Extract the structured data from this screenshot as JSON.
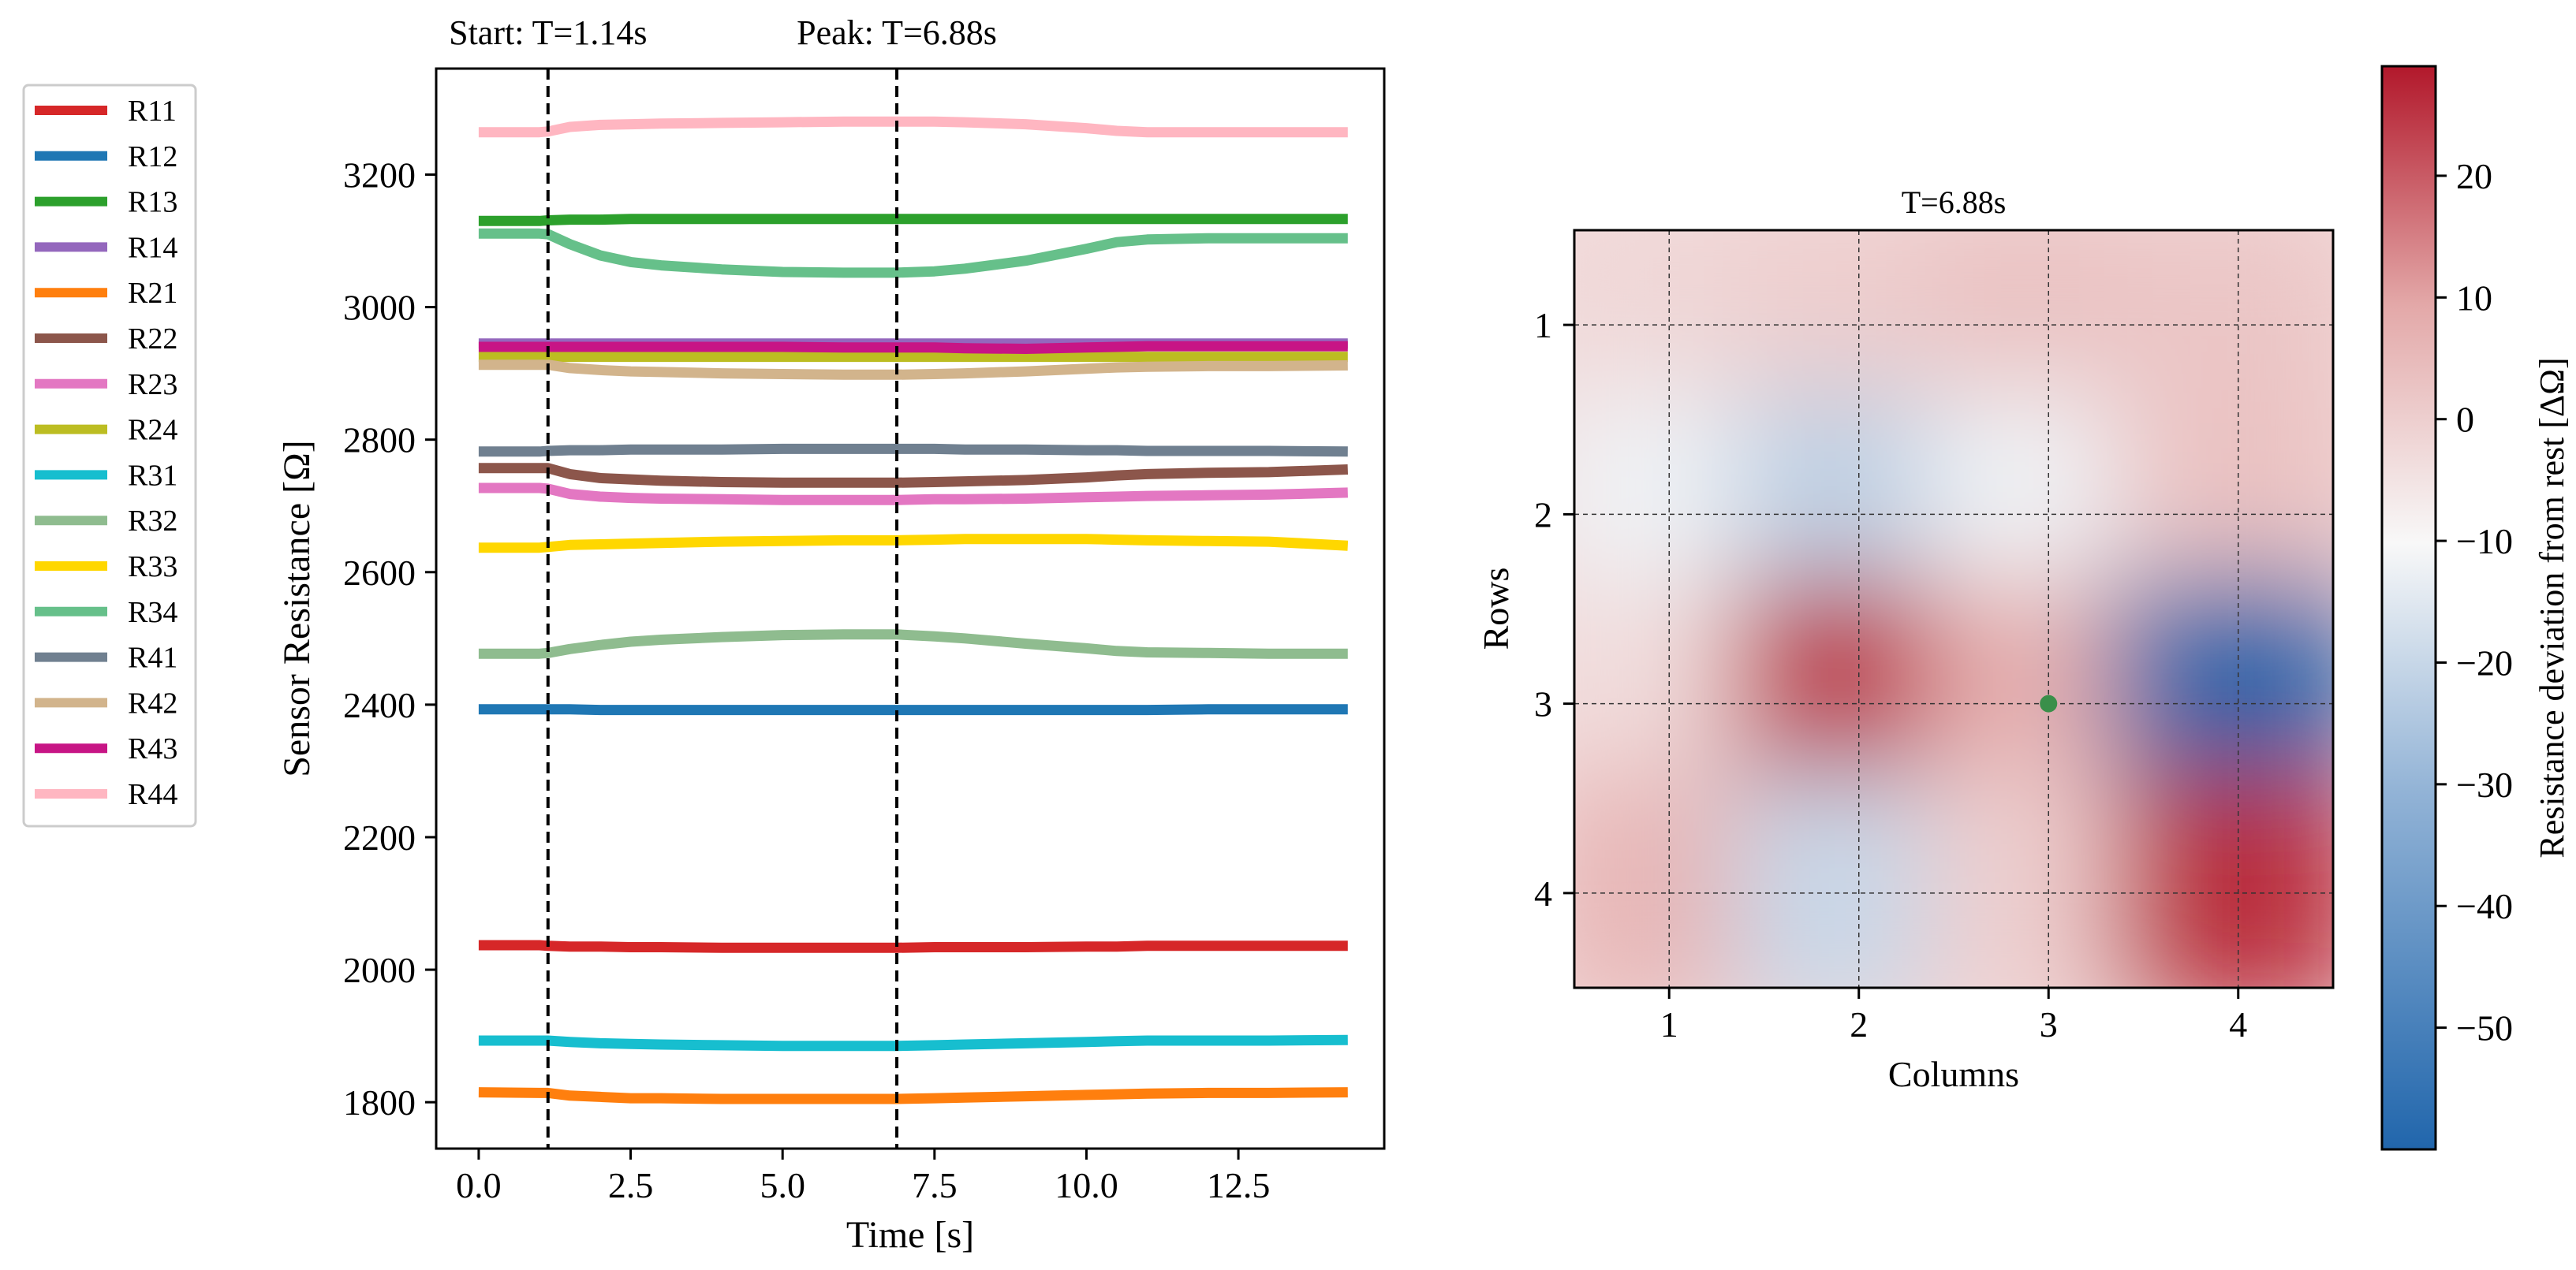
{
  "chart_data": [
    {
      "type": "line",
      "xlabel": "Time [s]",
      "ylabel": "Sensor Resistance [Ω]",
      "xlim": [
        -0.7,
        14.9
      ],
      "ylim": [
        1730,
        3360
      ],
      "xticks": [
        "0.0",
        "2.5",
        "5.0",
        "7.5",
        "10.0",
        "12.5"
      ],
      "xtick_values": [
        0,
        2.5,
        5,
        7.5,
        10,
        12.5
      ],
      "yticks": [
        "1800",
        "2000",
        "2200",
        "2400",
        "2600",
        "2800",
        "3000",
        "3200"
      ],
      "ytick_values": [
        1800,
        2000,
        2200,
        2400,
        2600,
        2800,
        3000,
        3200
      ],
      "markers": [
        {
          "label": "Start: T=1.14s",
          "x": 1.14
        },
        {
          "label": "Peak: T=6.88s",
          "x": 6.88
        }
      ],
      "legend_position": "outside-left",
      "x": [
        0,
        1,
        1.14,
        1.5,
        2,
        2.5,
        3,
        4,
        5,
        6,
        6.88,
        7.5,
        8,
        9,
        10,
        10.5,
        11,
        12,
        13,
        14.3
      ],
      "series": [
        {
          "name": "R11",
          "color": "#d62728",
          "values": [
            2037,
            2037,
            2036,
            2035,
            2035,
            2034,
            2034,
            2033,
            2033,
            2033,
            2033,
            2034,
            2034,
            2034,
            2035,
            2035,
            2036,
            2036,
            2036,
            2036
          ]
        },
        {
          "name": "R12",
          "color": "#1f77b4",
          "values": [
            2393,
            2393,
            2393,
            2393,
            2392,
            2392,
            2392,
            2392,
            2392,
            2392,
            2392,
            2392,
            2392,
            2392,
            2392,
            2392,
            2392,
            2393,
            2393,
            2393
          ]
        },
        {
          "name": "R13",
          "color": "#2ca02c",
          "values": [
            3130,
            3130,
            3131,
            3132,
            3132,
            3133,
            3133,
            3133,
            3133,
            3133,
            3133,
            3133,
            3133,
            3133,
            3133,
            3133,
            3133,
            3133,
            3133,
            3133
          ]
        },
        {
          "name": "R14",
          "color": "#9467bd",
          "values": [
            2945,
            2945,
            2945,
            2945,
            2945,
            2945,
            2945,
            2945,
            2945,
            2945,
            2945,
            2945,
            2945,
            2945,
            2945,
            2945,
            2945,
            2945,
            2945,
            2945
          ]
        },
        {
          "name": "R21",
          "color": "#ff7f0e",
          "values": [
            1815,
            1814,
            1814,
            1810,
            1808,
            1806,
            1806,
            1805,
            1805,
            1805,
            1805,
            1806,
            1807,
            1809,
            1811,
            1812,
            1813,
            1814,
            1814,
            1815
          ]
        },
        {
          "name": "R22",
          "color": "#8c564b",
          "values": [
            2757,
            2757,
            2757,
            2748,
            2742,
            2740,
            2738,
            2736,
            2735,
            2735,
            2735,
            2736,
            2737,
            2739,
            2743,
            2746,
            2748,
            2750,
            2751,
            2755
          ]
        },
        {
          "name": "R23",
          "color": "#e377c2",
          "values": [
            2727,
            2727,
            2726,
            2718,
            2714,
            2712,
            2711,
            2710,
            2709,
            2709,
            2709,
            2710,
            2710,
            2711,
            2713,
            2714,
            2715,
            2716,
            2717,
            2720
          ]
        },
        {
          "name": "R24",
          "color": "#bcbd22",
          "values": [
            2925,
            2925,
            2925,
            2925,
            2925,
            2925,
            2925,
            2925,
            2925,
            2925,
            2925,
            2925,
            2925,
            2925,
            2925,
            2925,
            2925,
            2925,
            2925,
            2925
          ]
        },
        {
          "name": "R31",
          "color": "#17becf",
          "values": [
            1893,
            1893,
            1893,
            1891,
            1889,
            1888,
            1887,
            1886,
            1885,
            1885,
            1885,
            1886,
            1887,
            1889,
            1891,
            1892,
            1893,
            1893,
            1893,
            1894
          ]
        },
        {
          "name": "R32",
          "color": "#8fbc8f",
          "values": [
            2477,
            2477,
            2478,
            2484,
            2490,
            2495,
            2498,
            2502,
            2505,
            2506,
            2506,
            2503,
            2500,
            2492,
            2485,
            2481,
            2479,
            2478,
            2477,
            2477
          ]
        },
        {
          "name": "R33",
          "color": "#ffd700",
          "values": [
            2637,
            2637,
            2638,
            2641,
            2642,
            2643,
            2644,
            2646,
            2647,
            2648,
            2648,
            2649,
            2650,
            2650,
            2650,
            2649,
            2648,
            2647,
            2646,
            2640
          ]
        },
        {
          "name": "R34",
          "color": "#66c08a",
          "values": [
            3111,
            3111,
            3110,
            3095,
            3078,
            3068,
            3063,
            3057,
            3053,
            3052,
            3052,
            3054,
            3058,
            3070,
            3088,
            3098,
            3102,
            3104,
            3104,
            3104
          ]
        },
        {
          "name": "R41",
          "color": "#708090",
          "values": [
            2782,
            2782,
            2783,
            2784,
            2784,
            2785,
            2785,
            2785,
            2786,
            2786,
            2786,
            2786,
            2785,
            2785,
            2784,
            2784,
            2783,
            2783,
            2783,
            2782
          ]
        },
        {
          "name": "R42",
          "color": "#d2b48c",
          "values": [
            2913,
            2913,
            2913,
            2908,
            2905,
            2903,
            2902,
            2900,
            2899,
            2898,
            2898,
            2899,
            2900,
            2903,
            2907,
            2909,
            2910,
            2911,
            2911,
            2912
          ]
        },
        {
          "name": "R43",
          "color": "#c71585",
          "values": [
            2940,
            2940,
            2940,
            2940,
            2940,
            2940,
            2940,
            2940,
            2940,
            2939,
            2939,
            2939,
            2938,
            2937,
            2939,
            2940,
            2941,
            2941,
            2941,
            2941
          ]
        },
        {
          "name": "R44",
          "color": "#ffb6c1",
          "values": [
            3264,
            3264,
            3265,
            3272,
            3275,
            3276,
            3277,
            3278,
            3279,
            3280,
            3280,
            3280,
            3279,
            3276,
            3270,
            3266,
            3264,
            3264,
            3264,
            3264
          ]
        }
      ]
    },
    {
      "type": "heatmap",
      "title": "T=6.88s",
      "xlabel": "Columns",
      "ylabel": "Rows",
      "xticks": [
        "1",
        "2",
        "3",
        "4"
      ],
      "yticks": [
        "1",
        "2",
        "3",
        "4"
      ],
      "rows": [
        "1",
        "2",
        "3",
        "4"
      ],
      "columns": [
        "1",
        "2",
        "3",
        "4"
      ],
      "values": [
        [
          -2,
          0,
          3,
          2
        ],
        [
          -12,
          -22,
          -12,
          3
        ],
        [
          -3,
          25,
          8,
          -60
        ],
        [
          6,
          -20,
          0,
          26
        ]
      ],
      "marker": {
        "label": "",
        "row": 3,
        "column": 3,
        "color": "#3a8f4a"
      },
      "colorbar": {
        "label": "Resistance deviation from rest [ΔΩ]",
        "range": [
          -60,
          29
        ],
        "ticks": [
          "20",
          "10",
          "0",
          "−10",
          "−20",
          "−30",
          "−40",
          "−50"
        ],
        "tick_values": [
          20,
          10,
          0,
          -10,
          -20,
          -30,
          -40,
          -50
        ]
      }
    }
  ]
}
